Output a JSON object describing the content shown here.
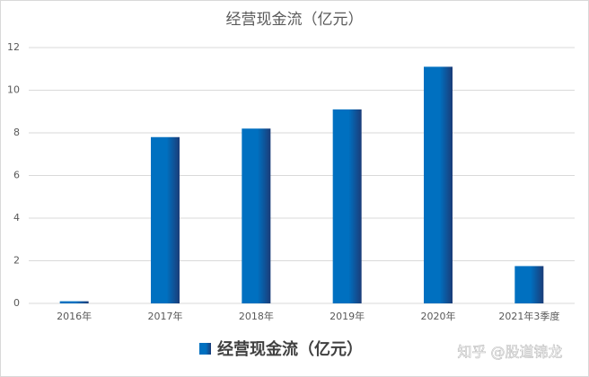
{
  "chart_data": {
    "type": "bar",
    "title": "经营现金流（亿元）",
    "categories": [
      "2016年",
      "2017年",
      "2018年",
      "2019年",
      "2020年",
      "2021年3季度"
    ],
    "series": [
      {
        "name": "经营现金流（亿元）",
        "color": "#0070c0",
        "values": [
          0.1,
          7.8,
          8.2,
          9.1,
          11.1,
          1.75
        ]
      }
    ],
    "ylim": [
      0,
      12
    ],
    "yticks": [
      0,
      2,
      4,
      6,
      8,
      10,
      12
    ],
    "grid": true,
    "legend": "bottom",
    "watermark": "知乎 @股道锦龙"
  }
}
